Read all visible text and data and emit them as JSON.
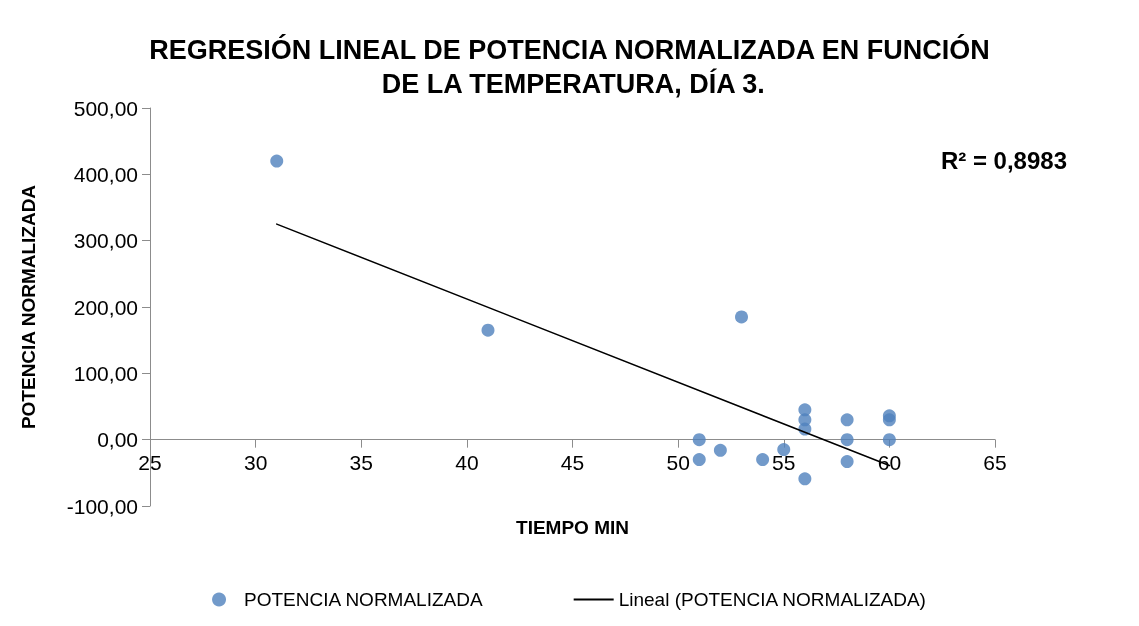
{
  "chart_data": {
    "type": "scatter",
    "title": "REGRESIÓN LINEAL DE POTENCIA NORMALIZADA EN FUNCIÓN DE LA TEMPERATURA, DÍA 3.",
    "xlabel": "TIEMPO MIN",
    "ylabel": "POTENCIA NORMALIZADA",
    "series": [
      {
        "name": "POTENCIA NORMALIZADA",
        "color": "#4f81bd",
        "marker": "circle",
        "x": [
          31,
          41,
          53,
          51,
          51,
          52,
          54,
          55,
          56,
          56,
          56,
          56,
          58,
          58,
          58,
          60,
          60,
          60
        ],
        "values": [
          420,
          165,
          185,
          0,
          -30,
          -16,
          -30,
          -15,
          45,
          30,
          16,
          -59,
          30,
          0,
          -33,
          36,
          30,
          0
        ]
      },
      {
        "name": "Lineal (POTENCIA NORMALIZADA)",
        "color": "#000000",
        "type": "line",
        "marker": "none",
        "line_style": "solid",
        "x": [
          31,
          60
        ],
        "values": [
          325,
          -39
        ]
      }
    ],
    "xlim": [
      25,
      65
    ],
    "xticks": [
      25,
      30,
      35,
      40,
      45,
      50,
      55,
      60,
      65
    ],
    "ylim": [
      -100,
      500
    ],
    "yticks": [
      {
        "value": -100,
        "label": "-100,00"
      },
      {
        "value": 0,
        "label": "0,00"
      },
      {
        "value": 100,
        "label": "100,00"
      },
      {
        "value": 200,
        "label": "200,00"
      },
      {
        "value": 300,
        "label": "300,00"
      },
      {
        "value": 400,
        "label": "400,00"
      },
      {
        "value": 500,
        "label": "500,00"
      }
    ],
    "annotations": [
      "R² = 0,8983"
    ],
    "grid": false,
    "legend": "bottom"
  }
}
